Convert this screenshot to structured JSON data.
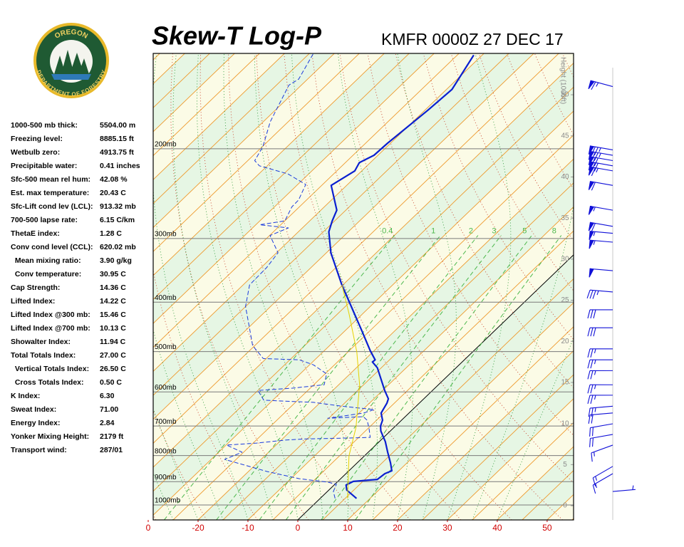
{
  "logo": {
    "top": "OREGON",
    "bottom": "DEPARTMENT OF FORESTRY"
  },
  "indices": [
    {
      "label": "1000-500 mb thick:",
      "value": "5504.00 m"
    },
    {
      "label": "Freezing level:",
      "value": "8885.15 ft"
    },
    {
      "label": "Wetbulb zero:",
      "value": "4913.75 ft"
    },
    {
      "label": "Precipitable water:",
      "value": "0.41 inches"
    },
    {
      "label": "Sfc-500 mean rel hum:",
      "value": "42.08 %"
    },
    {
      "label": "Est. max temperature:",
      "value": "20.43 C"
    },
    {
      "label": "Sfc-Lift cond lev (LCL):",
      "value": "913.32 mb"
    },
    {
      "label": "700-500 lapse rate:",
      "value": "6.15 C/km"
    },
    {
      "label": "ThetaE index:",
      "value": "1.28 C"
    },
    {
      "label": "Conv cond level (CCL):",
      "value": "620.02 mb"
    },
    {
      "label": "  Mean mixing ratio:",
      "value": "3.90 g/kg"
    },
    {
      "label": "  Conv temperature:",
      "value": "30.95 C"
    },
    {
      "label": "Cap Strength:",
      "value": "14.36 C"
    },
    {
      "label": "Lifted Index:",
      "value": "14.22 C"
    },
    {
      "label": "Lifted Index @300 mb:",
      "value": "15.46 C"
    },
    {
      "label": "Lifted Index @700 mb:",
      "value": "10.13 C"
    },
    {
      "label": "Showalter Index:",
      "value": "11.94 C"
    },
    {
      "label": "Total Totals Index:",
      "value": "27.00 C"
    },
    {
      "label": "  Vertical Totals Index:",
      "value": "26.50 C"
    },
    {
      "label": "  Cross Totals Index:",
      "value": "0.50 C"
    },
    {
      "label": "K Index:",
      "value": "6.30"
    },
    {
      "label": "Sweat Index:",
      "value": "71.00"
    },
    {
      "label": "Energy Index:",
      "value": "2.84"
    },
    {
      "label": "Yonker Mixing Height:",
      "value": "2179 ft"
    },
    {
      "label": "Transport wind:",
      "value": "287/01"
    }
  ],
  "chart_data": {
    "type": "skewt",
    "title": "Skew-T Log-P",
    "subtitle": "KMFR 0000Z 27 DEC 17",
    "xlim": [
      -29,
      55.3
    ],
    "xticks": [
      {
        "value": -30,
        "label": "0"
      },
      -20,
      -10,
      0,
      10,
      20,
      30,
      40,
      50
    ],
    "ylim": [
      1070,
      130
    ],
    "log_y": true,
    "yticks": [
      {
        "value": 200,
        "label": "200mb"
      },
      {
        "value": 300,
        "label": "300mb"
      },
      {
        "value": 400,
        "label": "400mb"
      },
      {
        "value": 500,
        "label": "500mb"
      },
      {
        "value": 600,
        "label": "600mb"
      },
      {
        "value": 700,
        "label": "700mb"
      },
      {
        "value": 800,
        "label": "800mb"
      },
      {
        "value": 900,
        "label": "900mb"
      },
      {
        "value": 1000,
        "label": "1000mb"
      }
    ],
    "y2label": "Height (1000ft)",
    "y2lim": [
      -1.73,
      55.03
    ],
    "y2ticks": [
      0,
      5,
      10,
      15,
      20,
      25,
      30,
      35,
      40,
      45,
      50
    ],
    "mixing_ratios": [
      0.4,
      1,
      2,
      3,
      5,
      8
    ],
    "series": [
      {
        "color": "#0a1fd0",
        "style": "bold",
        "pressure": [
          971,
          935,
          914,
          899,
          891,
          868,
          857,
          827,
          788,
          751,
          716,
          700,
          682,
          660,
          631,
          619,
          596,
          538,
          524,
          519,
          498,
          456,
          370,
          320,
          291,
          277,
          264,
          236,
          221,
          213,
          206,
          195,
          168,
          153,
          131
        ],
        "values": [
          7.3,
          3.6,
          2.4,
          3.1,
          7.5,
          7.8,
          8.6,
          6.7,
          3.9,
          1.2,
          -1.9,
          -3.0,
          -3.8,
          -5.6,
          -6.5,
          -7.1,
          -9.6,
          -15.8,
          -18.0,
          -17.9,
          -20.8,
          -26.5,
          -40.2,
          -49.1,
          -53.9,
          -55.5,
          -56.8,
          -63.1,
          -61.4,
          -62.2,
          -60.8,
          -60.6,
          -59.4,
          -58.9,
          -61.7
        ]
      },
      {
        "color": "#1a3adc",
        "style": "dashed",
        "pressure": [
          971,
          941,
          911,
          902,
          888,
          860,
          814,
          788,
          763,
          756,
          746,
          742,
          739,
          737,
          705,
          682,
          671,
          676,
          660,
          650,
          640,
          629,
          623,
          596,
          590,
          581,
          553,
          531,
          519,
          516,
          506,
          487,
          449,
          408,
          370,
          342,
          320,
          296,
          286,
          282,
          277,
          260,
          252,
          235,
          224,
          216,
          211,
          198,
          177,
          150,
          146,
          130
        ],
        "values": [
          3.0,
          1.2,
          0.3,
          -1.9,
          -8.3,
          -16.2,
          -27.3,
          -25.3,
          -29.9,
          -24.3,
          -19.2,
          -15.2,
          -6.8,
          -2.7,
          -5.0,
          -6.9,
          -8.4,
          -15.2,
          -9.1,
          -7.7,
          -14.9,
          -21.4,
          -31.8,
          -35.0,
          -28.6,
          -22.9,
          -24.7,
          -29.2,
          -33.1,
          -40.6,
          -42.2,
          -45.4,
          -49.8,
          -55.0,
          -58.7,
          -58.9,
          -59.7,
          -64.9,
          -62.8,
          -69.2,
          -65.0,
          -66.5,
          -66.6,
          -68.4,
          -74.2,
          -81.6,
          -83.6,
          -84.9,
          -88.6,
          -92.5,
          -91.8,
          -94.2
        ]
      },
      {
        "color": "#e6d200",
        "style": "thin",
        "pressure": [
          971,
          801,
          705,
          581,
          501,
          421,
          370
        ],
        "values": [
          5.5,
          -3.1,
          -7.6,
          -15.8,
          -23.2,
          -32.8,
          -40.2
        ]
      }
    ],
    "winds": {
      "color": "#1010d8",
      "pressure": [
        151,
        201,
        206,
        211,
        216,
        221,
        236,
        264,
        284,
        293,
        305,
        347,
        382,
        414,
        449,
        494,
        519,
        545,
        581,
        609,
        640,
        660,
        693,
        727,
        763,
        840,
        868,
        941
      ],
      "direction": [
        285,
        280,
        280,
        280,
        280,
        280,
        280,
        280,
        280,
        275,
        275,
        275,
        275,
        270,
        270,
        270,
        270,
        270,
        270,
        270,
        265,
        265,
        260,
        260,
        250,
        240,
        240,
        85
      ],
      "speed": [
        65,
        75,
        75,
        70,
        70,
        65,
        60,
        55,
        60,
        55,
        55,
        50,
        35,
        30,
        30,
        25,
        25,
        25,
        25,
        25,
        25,
        20,
        20,
        20,
        15,
        15,
        15,
        5
      ]
    }
  }
}
